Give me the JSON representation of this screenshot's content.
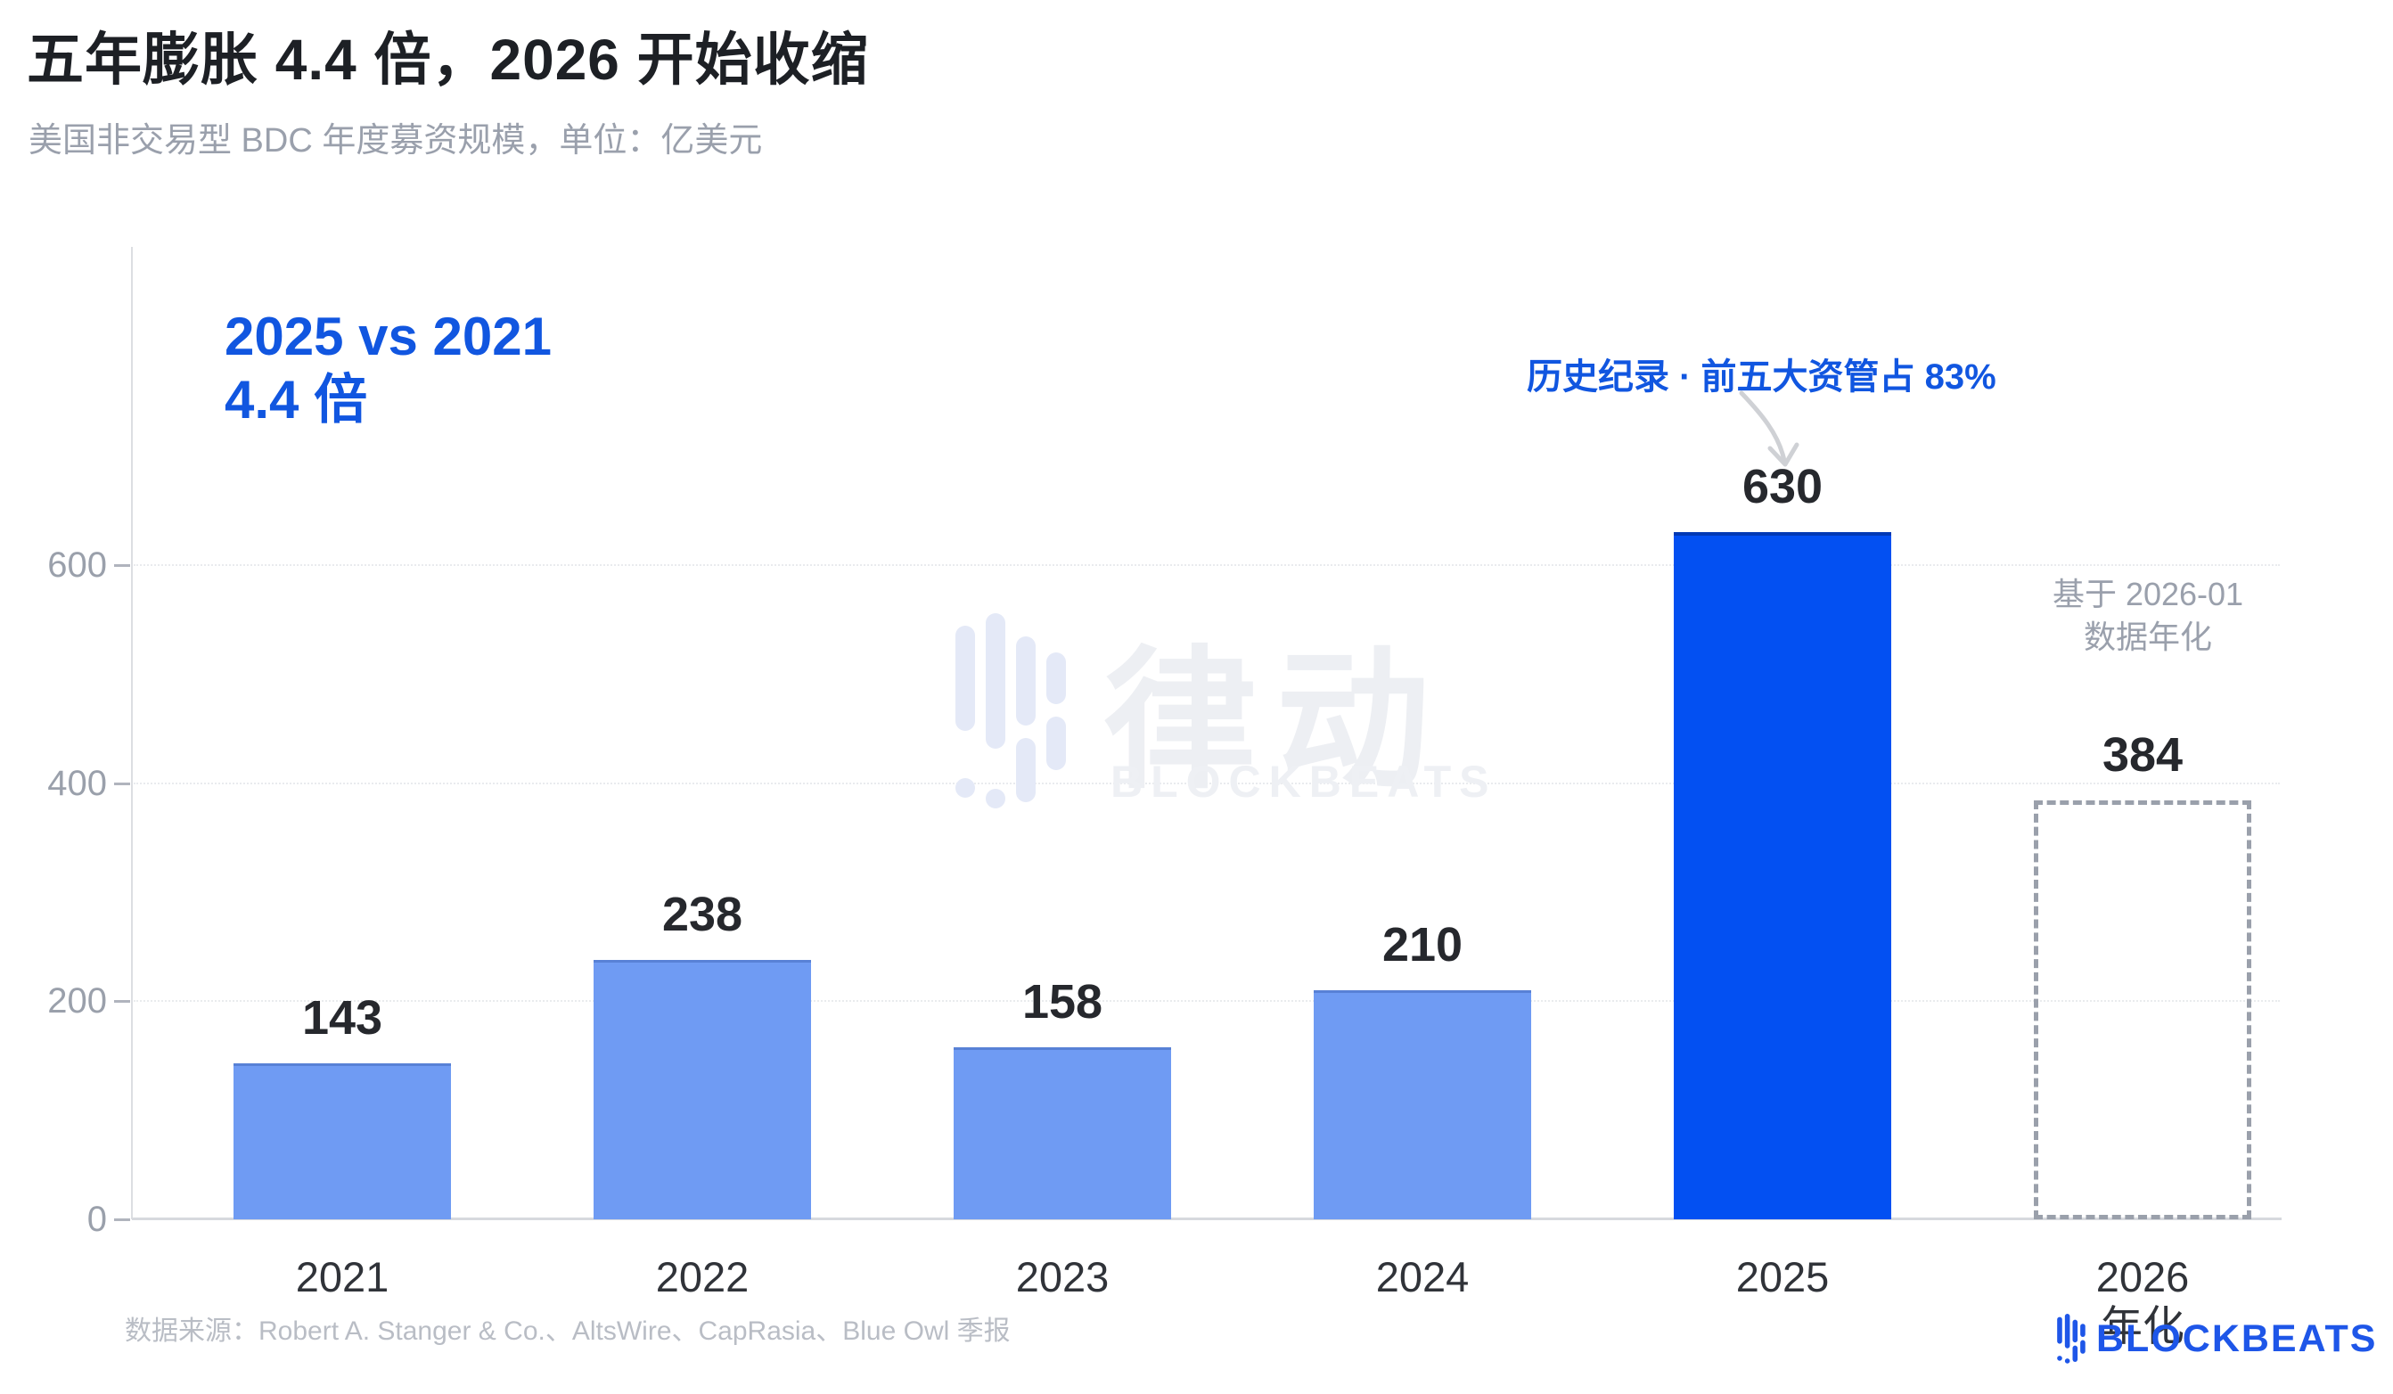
{
  "header": {
    "title": "五年膨胀 4.4 倍，2026 开始收缩",
    "subtitle": "美国非交易型 BDC 年度募资规模，单位：亿美元"
  },
  "annotations": {
    "compare_line1": "2025 vs 2021",
    "compare_line2": "4.4 倍",
    "record": "历史纪录 · 前五大资管占 83%",
    "annualized_line1": "基于 2026-01",
    "annualized_line2": "数据年化"
  },
  "chart_data": {
    "type": "bar",
    "title": "五年膨胀 4.4 倍，2026 开始收缩",
    "subtitle": "美国非交易型 BDC 年度募资规模，单位：亿美元",
    "categories": [
      "2021",
      "2022",
      "2023",
      "2024",
      "2025",
      "2026"
    ],
    "values": [
      143,
      238,
      158,
      210,
      630,
      384
    ],
    "emphasis": [
      "normal",
      "normal",
      "normal",
      "normal",
      "highlight",
      "projected"
    ],
    "x_sub_labels": [
      "",
      "",
      "",
      "",
      "",
      "年化"
    ],
    "y_ticks": [
      0,
      200,
      400,
      600
    ],
    "ylim": [
      0,
      700
    ],
    "grid": "horizontal-dotted",
    "legend": "none",
    "colors": {
      "bar_normal": "#6f9bf3",
      "bar_highlight": "#0350f2",
      "projected_border": "#9aa0ab",
      "annotation_blue": "#1156e0",
      "axis_text": "#9aa0ab",
      "value_text": "#26282d"
    }
  },
  "watermark": {
    "cn": "律动",
    "en": "BLOCKBEATS"
  },
  "footer": {
    "source": "数据来源：Robert A. Stanger & Co.、AltsWire、CapRasia、Blue Owl 季报",
    "logo_text": "BLOCKBEATS"
  }
}
